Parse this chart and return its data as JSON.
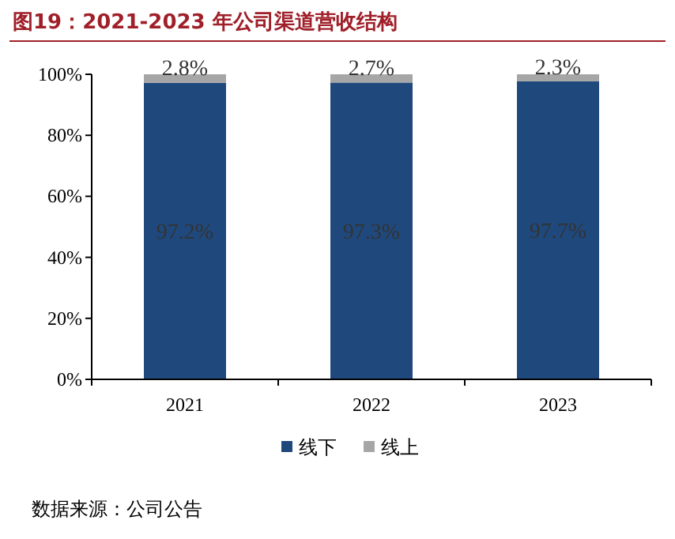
{
  "chart_data": {
    "type": "bar",
    "stacked": true,
    "title": "图19：2021-2023 年公司渠道营收结构",
    "categories": [
      "2021",
      "2022",
      "2023"
    ],
    "series": [
      {
        "name": "线下",
        "color": "#1f497d",
        "values": [
          97.2,
          97.3,
          97.7
        ],
        "value_labels": [
          "97.2%",
          "97.3%",
          "97.7%"
        ]
      },
      {
        "name": "线上",
        "color": "#a6a6a6",
        "values": [
          2.8,
          2.7,
          2.3
        ],
        "value_labels": [
          "2.8%",
          "2.7%",
          "2.3%"
        ]
      }
    ],
    "ylim": [
      0,
      100
    ],
    "yticks": [
      {
        "value": 0,
        "label": "0%"
      },
      {
        "value": 20,
        "label": "20%"
      },
      {
        "value": 40,
        "label": "40%"
      },
      {
        "value": 60,
        "label": "60%"
      },
      {
        "value": 80,
        "label": "80%"
      },
      {
        "value": 100,
        "label": "100%"
      }
    ],
    "legend": "bottom",
    "annotations": [
      "数据来源：公司公告"
    ]
  }
}
